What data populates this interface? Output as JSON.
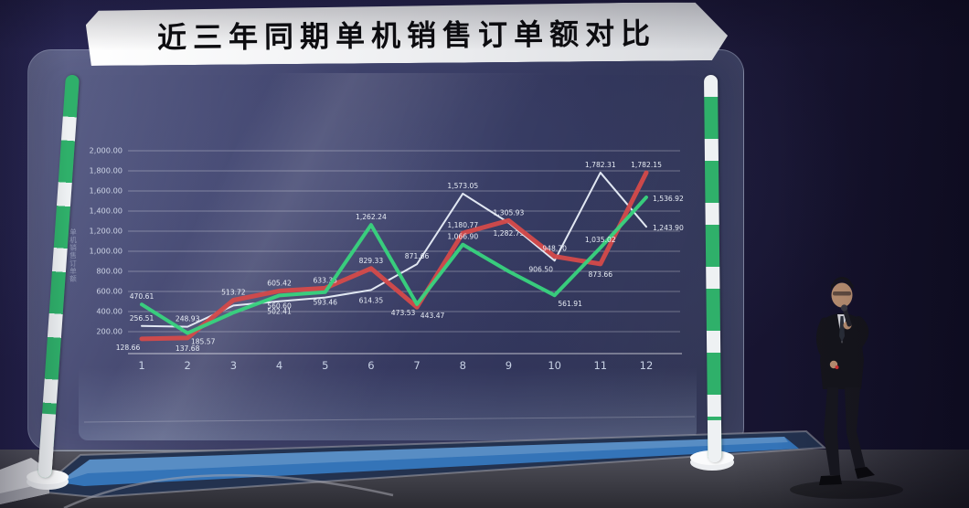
{
  "scene": {
    "title": "近三年同期单机销售订单额对比"
  },
  "chart_data": {
    "type": "line",
    "title": "近三年同期单机销售订单额对比",
    "xlabel": "",
    "ylabel": "单机销售订单额",
    "categories": [
      "1",
      "2",
      "3",
      "4",
      "5",
      "6",
      "7",
      "8",
      "9",
      "10",
      "11",
      "12"
    ],
    "ylim": [
      0,
      2000
    ],
    "grid": true,
    "legend": "none",
    "y_ticks": [
      {
        "v": 200,
        "t": "200.00"
      },
      {
        "v": 400,
        "t": "400.00"
      },
      {
        "v": 600,
        "t": "600.00"
      },
      {
        "v": 800,
        "t": "800.00"
      },
      {
        "v": 1000,
        "t": "1,000.00"
      },
      {
        "v": 1200,
        "t": "1,200.00"
      },
      {
        "v": 1400,
        "t": "1,400.00"
      },
      {
        "v": 1600,
        "t": "1,600.00"
      },
      {
        "v": 1800,
        "t": "1,800.00"
      },
      {
        "v": 2000,
        "t": "2,000.00"
      }
    ],
    "series": [
      {
        "name": "series-white",
        "color": "#e8eef8",
        "stroke_width": 2,
        "values": [
          256.51,
          248.93,
          460.0,
          502.41,
          540.0,
          614.35,
          871.66,
          1573.05,
          1282.73,
          906.5,
          1782.31,
          1243.9
        ],
        "labels": [
          "256.51",
          "248.93",
          null,
          "502.41",
          null,
          "614.35",
          "871.66",
          "1,573.05",
          "1,282.73",
          "906.50",
          "1,782.31",
          "1,243.90"
        ],
        "label_pos": [
          "a",
          "a",
          null,
          "b",
          null,
          "b",
          "a",
          "a",
          "b",
          "bl",
          "a",
          "r"
        ]
      },
      {
        "name": "series-red",
        "color": "#d24a4a",
        "stroke_width": 5,
        "values": [
          128.66,
          137.68,
          513.72,
          605.42,
          633.35,
          829.33,
          443.47,
          1180.77,
          1305.93,
          948.7,
          873.66,
          1782.15
        ],
        "labels": [
          "128.66",
          "137.68",
          "513.72",
          "605.42",
          "633.35",
          "829.33",
          "443.47",
          "1,180.77",
          "1,305.93",
          "948.70",
          "873.66",
          "1,782.15"
        ],
        "label_pos": [
          "bl",
          "b",
          "a",
          "a",
          "a",
          "a",
          "br",
          "a",
          "a",
          "a",
          "b",
          "a"
        ]
      },
      {
        "name": "series-green",
        "color": "#38d27e",
        "stroke_width": 4,
        "values": [
          470.61,
          185.57,
          390.0,
          560.6,
          593.46,
          1262.24,
          473.53,
          1066.9,
          800.0,
          561.91,
          1035.02,
          1536.92
        ],
        "labels": [
          "470.61",
          "185.57",
          null,
          "560.60",
          "593.46",
          "1,262.24",
          "473.53",
          "1,066.90",
          null,
          "561.91",
          "1,035.02",
          "1,536.92"
        ],
        "label_pos": [
          "a",
          "br",
          null,
          "b",
          "b",
          "a",
          "bl",
          "a",
          null,
          "br",
          "a",
          "r"
        ]
      }
    ]
  }
}
